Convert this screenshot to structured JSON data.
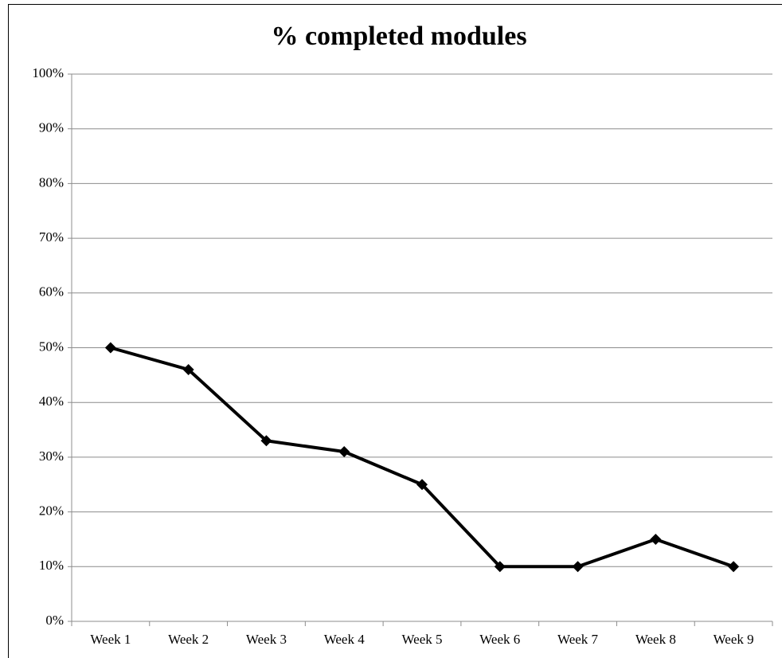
{
  "chart_data": {
    "type": "line",
    "title": "% completed modules",
    "categories": [
      "Week 1",
      "Week 2",
      "Week 3",
      "Week 4",
      "Week 5",
      "Week 6",
      "Week 7",
      "Week 8",
      "Week 9"
    ],
    "values": [
      50,
      46,
      33,
      31,
      25,
      10,
      10,
      15,
      10
    ],
    "color": "#000000",
    "ylim": [
      0,
      100
    ],
    "yticks": [
      {
        "value": 0,
        "label": "0%"
      },
      {
        "value": 10,
        "label": "10%"
      },
      {
        "value": 20,
        "label": "20%"
      },
      {
        "value": 30,
        "label": "30%"
      },
      {
        "value": 40,
        "label": "40%"
      },
      {
        "value": 50,
        "label": "50%"
      },
      {
        "value": 60,
        "label": "60%"
      },
      {
        "value": 70,
        "label": "70%"
      },
      {
        "value": 80,
        "label": "80%"
      },
      {
        "value": 90,
        "label": "90%"
      },
      {
        "value": 100,
        "label": "100%"
      }
    ],
    "grid": true
  }
}
